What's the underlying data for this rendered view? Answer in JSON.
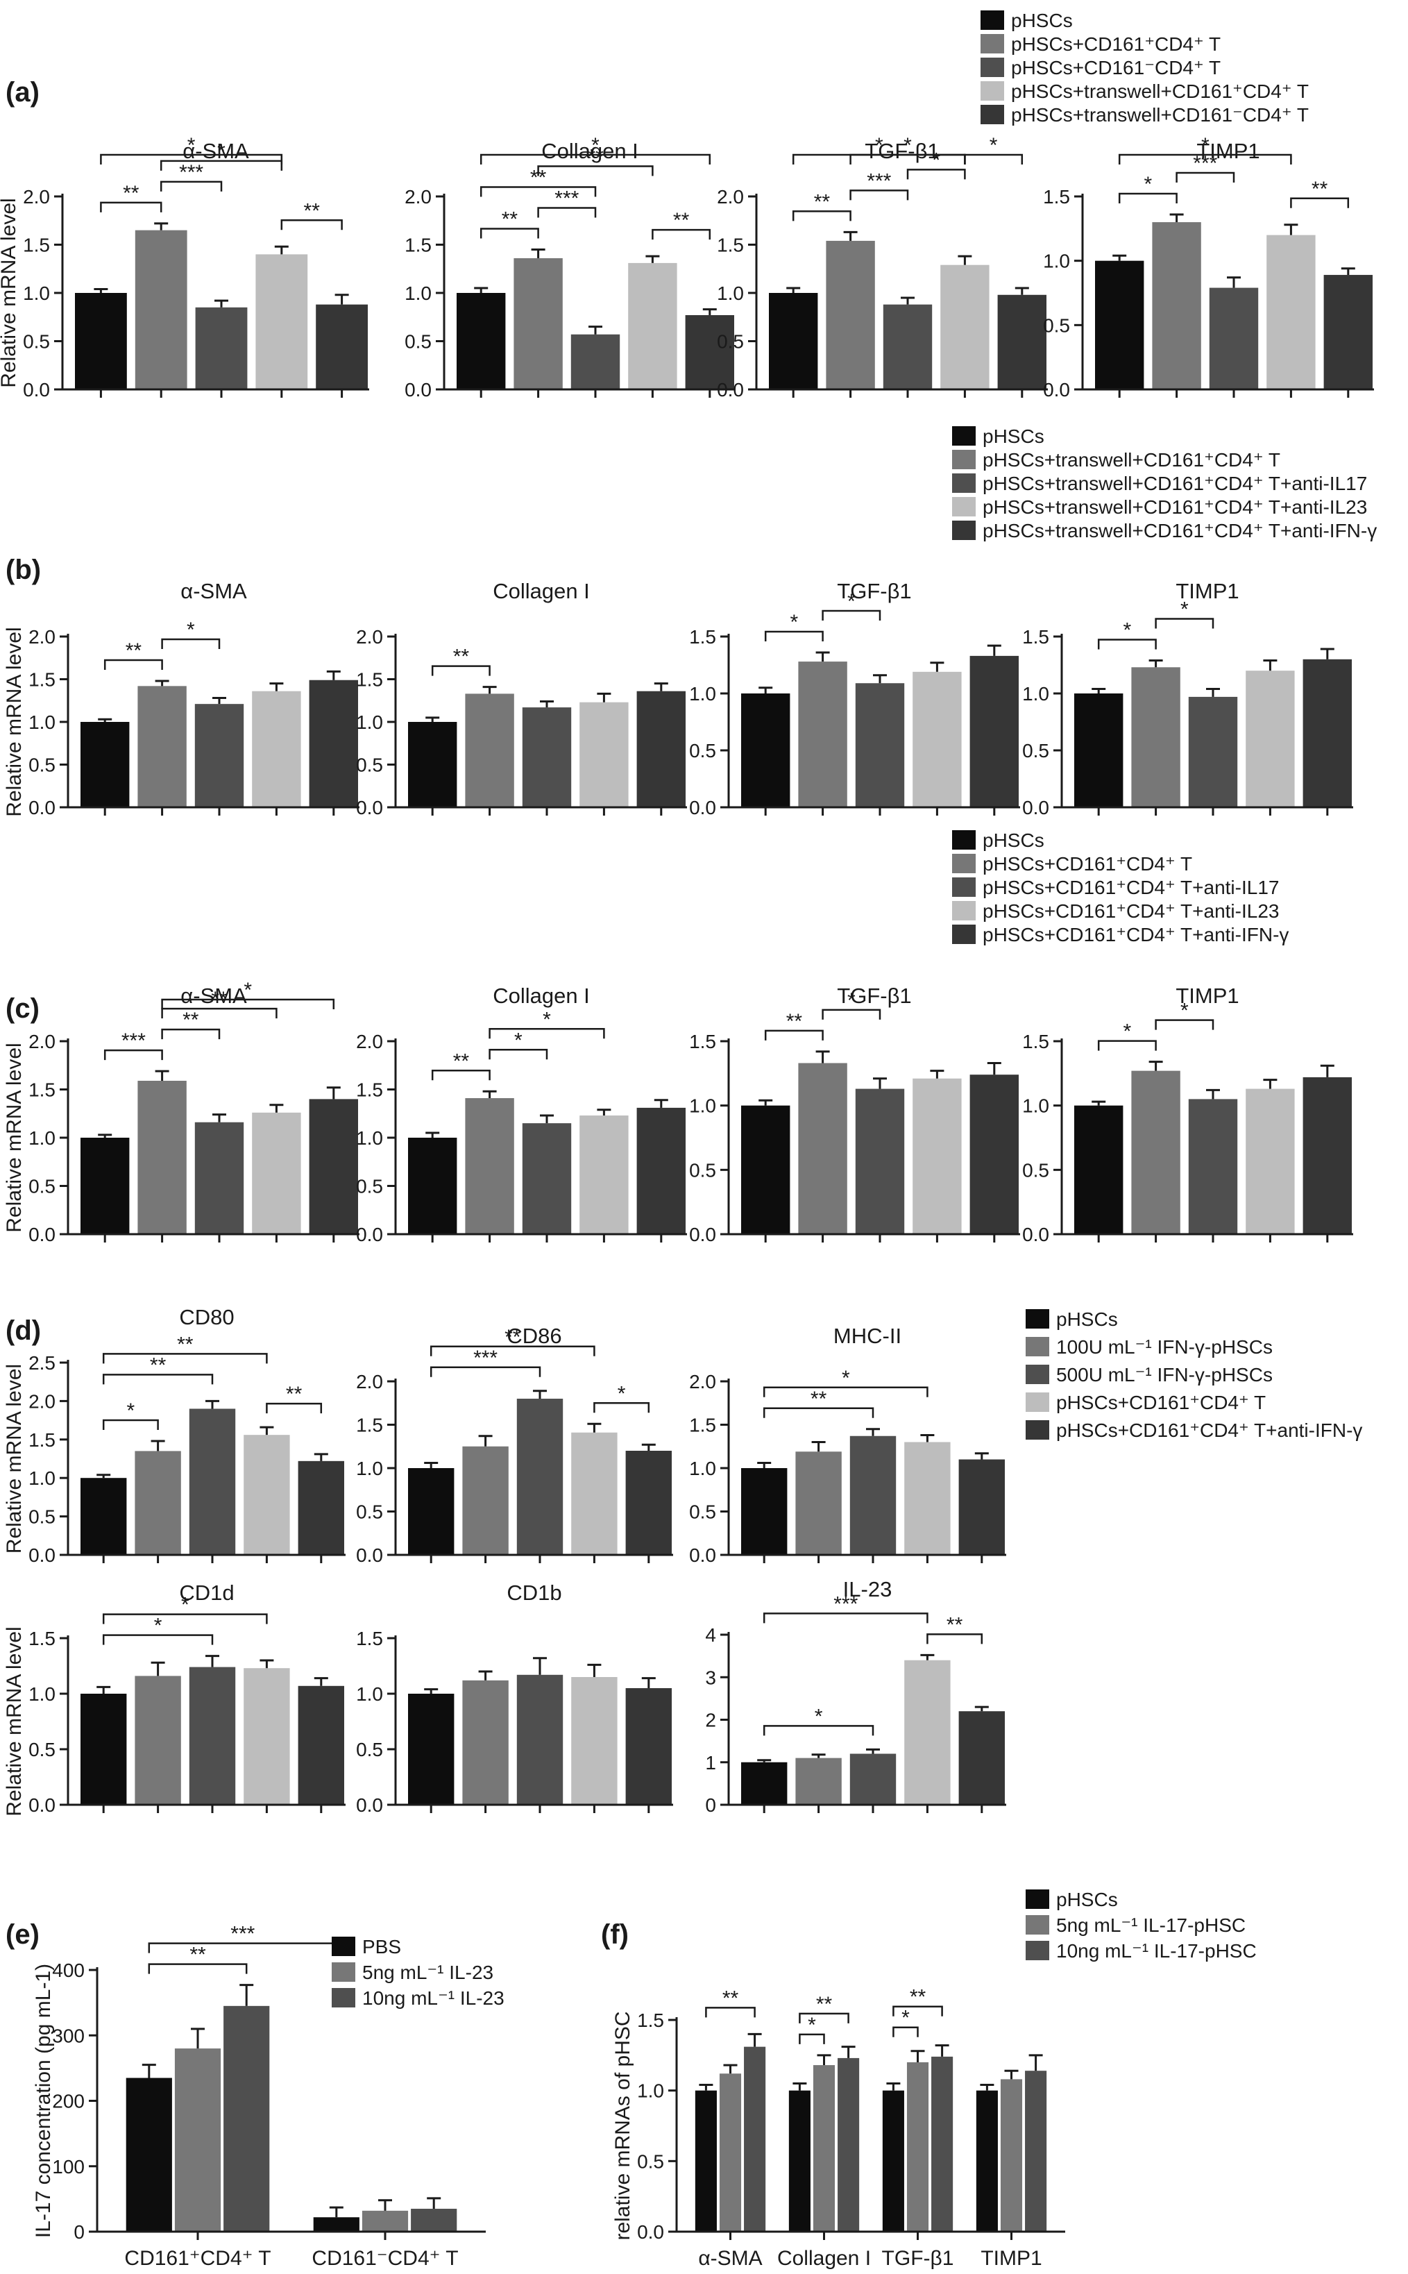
{
  "colors": {
    "c1": "#0d0d0d",
    "c2": "#777777",
    "c3": "#4f4f4f",
    "c4": "#bdbdbd",
    "c5": "#363636"
  },
  "legends": {
    "a": [
      "pHSCs",
      "pHSCs+CD161⁺CD4⁺ T",
      "pHSCs+CD161⁻CD4⁺ T",
      "pHSCs+transwell+CD161⁺CD4⁺ T",
      "pHSCs+transwell+CD161⁻CD4⁺ T"
    ],
    "b": [
      "pHSCs",
      "pHSCs+transwell+CD161⁺CD4⁺ T",
      "pHSCs+transwell+CD161⁺CD4⁺ T+anti-IL17",
      "pHSCs+transwell+CD161⁺CD4⁺ T+anti-IL23",
      "pHSCs+transwell+CD161⁺CD4⁺ T+anti-IFN-γ"
    ],
    "c": [
      "pHSCs",
      "pHSCs+CD161⁺CD4⁺ T",
      "pHSCs+CD161⁺CD4⁺ T+anti-IL17",
      "pHSCs+CD161⁺CD4⁺ T+anti-IL23",
      "pHSCs+CD161⁺CD4⁺ T+anti-IFN-γ"
    ],
    "d": [
      "pHSCs",
      "100U mL⁻¹ IFN-γ-pHSCs",
      "500U mL⁻¹ IFN-γ-pHSCs",
      "pHSCs+CD161⁺CD4⁺ T",
      "pHSCs+CD161⁺CD4⁺ T+anti-IFN-γ"
    ],
    "e": [
      "PBS",
      "5ng mL⁻¹ IL-23",
      "10ng mL⁻¹ IL-23"
    ],
    "f": [
      "pHSCs",
      "5ng mL⁻¹ IL-17-pHSC",
      "10ng mL⁻¹ IL-17-pHSC"
    ]
  },
  "chart_data": [
    {
      "panel": "a",
      "type": "bar",
      "title": "α-SMA",
      "ylabel": "Relative mRNA level",
      "ylim": [
        0,
        2.0
      ],
      "yticks": [
        "0.0",
        "0.5",
        "1.0",
        "1.5",
        "2.0"
      ],
      "legend": "a",
      "values": [
        1.0,
        1.65,
        0.85,
        1.4,
        0.88
      ],
      "errors": [
        0.04,
        0.07,
        0.07,
        0.08,
        0.1
      ],
      "sig": [
        {
          "from": 1,
          "to": 2,
          "label": "**"
        },
        {
          "from": 2,
          "to": 3,
          "label": "***"
        },
        {
          "from": 2,
          "to": 4,
          "label": "*"
        },
        {
          "from": 4,
          "to": 5,
          "label": "**"
        },
        {
          "from": 1,
          "to": 4,
          "label": "*"
        }
      ]
    },
    {
      "panel": "a",
      "type": "bar",
      "title": "Collagen I",
      "ylabel": "",
      "ylim": [
        0,
        2.0
      ],
      "yticks": [
        "0.0",
        "0.5",
        "1.0",
        "1.5",
        "2.0"
      ],
      "legend": "a",
      "values": [
        1.0,
        1.36,
        0.57,
        1.31,
        0.77
      ],
      "errors": [
        0.05,
        0.09,
        0.08,
        0.07,
        0.06
      ],
      "sig": [
        {
          "from": 1,
          "to": 2,
          "label": "**"
        },
        {
          "from": 2,
          "to": 3,
          "label": "***"
        },
        {
          "from": 1,
          "to": 3,
          "label": "**"
        },
        {
          "from": 4,
          "to": 5,
          "label": "**"
        },
        {
          "from": 2,
          "to": 4,
          "label": "**"
        },
        {
          "from": 1,
          "to": 5,
          "label": "*"
        }
      ]
    },
    {
      "panel": "a",
      "type": "bar",
      "title": "TGF-β1",
      "ylabel": "",
      "ylim": [
        0,
        2.0
      ],
      "yticks": [
        "0.0",
        "0.5",
        "1.0",
        "1.5",
        "2.0"
      ],
      "legend": "a",
      "values": [
        1.0,
        1.54,
        0.88,
        1.29,
        0.98
      ],
      "errors": [
        0.05,
        0.09,
        0.07,
        0.09,
        0.07
      ],
      "sig": [
        {
          "from": 1,
          "to": 2,
          "label": "**"
        },
        {
          "from": 2,
          "to": 3,
          "label": "***"
        },
        {
          "from": 3,
          "to": 4,
          "label": "*"
        },
        {
          "from": 4,
          "to": 5,
          "label": "*"
        },
        {
          "from": 2,
          "to": 4,
          "label": "*"
        },
        {
          "from": 1,
          "to": 4,
          "label": "*"
        }
      ]
    },
    {
      "panel": "a",
      "type": "bar",
      "title": "TIMP1",
      "ylabel": "",
      "ylim": [
        0,
        1.5
      ],
      "yticks": [
        "0.0",
        "0.5",
        "1.0",
        "1.5"
      ],
      "legend": "a",
      "values": [
        1.0,
        1.3,
        0.79,
        1.2,
        0.89
      ],
      "errors": [
        0.04,
        0.06,
        0.08,
        0.08,
        0.05
      ],
      "sig": [
        {
          "from": 1,
          "to": 2,
          "label": "*"
        },
        {
          "from": 2,
          "to": 3,
          "label": "***"
        },
        {
          "from": 4,
          "to": 5,
          "label": "**"
        },
        {
          "from": 1,
          "to": 4,
          "label": "*"
        }
      ]
    },
    {
      "panel": "b",
      "type": "bar",
      "title": "α-SMA",
      "ylabel": "Relative mRNA level",
      "ylim": [
        0,
        2.0
      ],
      "yticks": [
        "0.0",
        "0.5",
        "1.0",
        "1.5",
        "2.0"
      ],
      "legend": "b",
      "values": [
        1.0,
        1.42,
        1.21,
        1.36,
        1.49
      ],
      "errors": [
        0.03,
        0.06,
        0.07,
        0.09,
        0.1
      ],
      "sig": [
        {
          "from": 1,
          "to": 2,
          "label": "**"
        },
        {
          "from": 2,
          "to": 3,
          "label": "*"
        }
      ]
    },
    {
      "panel": "b",
      "type": "bar",
      "title": "Collagen I",
      "ylabel": "",
      "ylim": [
        0,
        2.0
      ],
      "yticks": [
        "0.0",
        "0.5",
        "1.0",
        "1.5",
        "2.0"
      ],
      "legend": "b",
      "values": [
        1.0,
        1.33,
        1.17,
        1.23,
        1.36
      ],
      "errors": [
        0.05,
        0.08,
        0.07,
        0.1,
        0.09
      ],
      "sig": [
        {
          "from": 1,
          "to": 2,
          "label": "**"
        }
      ]
    },
    {
      "panel": "b",
      "type": "bar",
      "title": "TGF-β1",
      "ylabel": "",
      "ylim": [
        0,
        1.5
      ],
      "yticks": [
        "0.0",
        "0.5",
        "1.0",
        "1.5"
      ],
      "legend": "b",
      "values": [
        1.0,
        1.28,
        1.09,
        1.19,
        1.33
      ],
      "errors": [
        0.05,
        0.08,
        0.07,
        0.08,
        0.09
      ],
      "sig": [
        {
          "from": 1,
          "to": 2,
          "label": "*"
        },
        {
          "from": 2,
          "to": 3,
          "label": "*"
        }
      ]
    },
    {
      "panel": "b",
      "type": "bar",
      "title": "TIMP1",
      "ylabel": "",
      "ylim": [
        0,
        1.5
      ],
      "yticks": [
        "0.0",
        "0.5",
        "1.0",
        "1.5"
      ],
      "legend": "b",
      "values": [
        1.0,
        1.23,
        0.97,
        1.2,
        1.3
      ],
      "errors": [
        0.04,
        0.06,
        0.07,
        0.09,
        0.09
      ],
      "sig": [
        {
          "from": 1,
          "to": 2,
          "label": "*"
        },
        {
          "from": 2,
          "to": 3,
          "label": "*"
        }
      ]
    },
    {
      "panel": "c",
      "type": "bar",
      "title": "α-SMA",
      "ylabel": "Relative mRNA level",
      "ylim": [
        0,
        2.0
      ],
      "yticks": [
        "0.0",
        "0.5",
        "1.0",
        "1.5",
        "2.0"
      ],
      "legend": "c",
      "values": [
        1.0,
        1.59,
        1.16,
        1.26,
        1.4
      ],
      "errors": [
        0.03,
        0.1,
        0.08,
        0.08,
        0.12
      ],
      "sig": [
        {
          "from": 1,
          "to": 2,
          "label": "***"
        },
        {
          "from": 2,
          "to": 3,
          "label": "**"
        },
        {
          "from": 2,
          "to": 4,
          "label": "**"
        },
        {
          "from": 2,
          "to": 5,
          "label": "*"
        }
      ]
    },
    {
      "panel": "c",
      "type": "bar",
      "title": "Collagen I",
      "ylabel": "",
      "ylim": [
        0,
        2.0
      ],
      "yticks": [
        "0.0",
        "0.5",
        "1.0",
        "1.5",
        "2.0"
      ],
      "legend": "c",
      "values": [
        1.0,
        1.41,
        1.15,
        1.23,
        1.31
      ],
      "errors": [
        0.05,
        0.07,
        0.08,
        0.06,
        0.08
      ],
      "sig": [
        {
          "from": 1,
          "to": 2,
          "label": "**"
        },
        {
          "from": 2,
          "to": 3,
          "label": "*"
        },
        {
          "from": 2,
          "to": 4,
          "label": "*"
        }
      ]
    },
    {
      "panel": "c",
      "type": "bar",
      "title": "TGF-β1",
      "ylabel": "",
      "ylim": [
        0,
        1.5
      ],
      "yticks": [
        "0.0",
        "0.5",
        "1.0",
        "1.5"
      ],
      "legend": "c",
      "values": [
        1.0,
        1.33,
        1.13,
        1.21,
        1.24
      ],
      "errors": [
        0.04,
        0.09,
        0.08,
        0.06,
        0.09
      ],
      "sig": [
        {
          "from": 1,
          "to": 2,
          "label": "**"
        },
        {
          "from": 2,
          "to": 3,
          "label": "*"
        }
      ]
    },
    {
      "panel": "c",
      "type": "bar",
      "title": "TIMP1",
      "ylabel": "",
      "ylim": [
        0,
        1.5
      ],
      "yticks": [
        "0.0",
        "0.5",
        "1.0",
        "1.5"
      ],
      "legend": "c",
      "values": [
        1.0,
        1.27,
        1.05,
        1.13,
        1.22
      ],
      "errors": [
        0.03,
        0.07,
        0.07,
        0.07,
        0.09
      ],
      "sig": [
        {
          "from": 1,
          "to": 2,
          "label": "*"
        },
        {
          "from": 2,
          "to": 3,
          "label": "*"
        }
      ]
    },
    {
      "panel": "d",
      "type": "bar",
      "title": "CD80",
      "ylabel": "Relative  mRNA level",
      "ylim": [
        0,
        2.5
      ],
      "yticks": [
        "0.0",
        "0.5",
        "1.0",
        "1.5",
        "2.0",
        "2.5"
      ],
      "legend": "d",
      "values": [
        1.0,
        1.35,
        1.9,
        1.56,
        1.22
      ],
      "errors": [
        0.04,
        0.13,
        0.1,
        0.1,
        0.09
      ],
      "sig": [
        {
          "from": 1,
          "to": 2,
          "label": "*"
        },
        {
          "from": 1,
          "to": 3,
          "label": "**"
        },
        {
          "from": 4,
          "to": 5,
          "label": "**"
        },
        {
          "from": 1,
          "to": 4,
          "label": "**"
        }
      ]
    },
    {
      "panel": "d",
      "type": "bar",
      "title": "CD86",
      "ylabel": "",
      "ylim": [
        0,
        2.0
      ],
      "yticks": [
        "0.0",
        "0.5",
        "1.0",
        "1.5",
        "2.0"
      ],
      "legend": "d",
      "values": [
        1.0,
        1.25,
        1.8,
        1.41,
        1.2
      ],
      "errors": [
        0.06,
        0.12,
        0.09,
        0.1,
        0.07
      ],
      "sig": [
        {
          "from": 1,
          "to": 3,
          "label": "***"
        },
        {
          "from": 4,
          "to": 5,
          "label": "*"
        },
        {
          "from": 1,
          "to": 4,
          "label": "**"
        }
      ]
    },
    {
      "panel": "d",
      "type": "bar",
      "title": "MHC-II",
      "ylabel": "",
      "ylim": [
        0,
        2.0
      ],
      "yticks": [
        "0.0",
        "0.5",
        "1.0",
        "1.5",
        "2.0"
      ],
      "legend": "d",
      "values": [
        1.0,
        1.19,
        1.37,
        1.3,
        1.1
      ],
      "errors": [
        0.06,
        0.11,
        0.08,
        0.08,
        0.07
      ],
      "sig": [
        {
          "from": 1,
          "to": 3,
          "label": "**"
        },
        {
          "from": 1,
          "to": 4,
          "label": "*"
        }
      ]
    },
    {
      "panel": "d",
      "type": "bar",
      "title": "CD1d",
      "ylabel": "Relative  mRNA level",
      "ylim": [
        0,
        1.5
      ],
      "yticks": [
        "0.0",
        "0.5",
        "1.0",
        "1.5"
      ],
      "legend": "d",
      "values": [
        1.0,
        1.16,
        1.24,
        1.23,
        1.07
      ],
      "errors": [
        0.06,
        0.12,
        0.1,
        0.07,
        0.07
      ],
      "sig": [
        {
          "from": 1,
          "to": 3,
          "label": "*"
        },
        {
          "from": 1,
          "to": 4,
          "label": "*"
        }
      ]
    },
    {
      "panel": "d",
      "type": "bar",
      "title": "CD1b",
      "ylabel": "",
      "ylim": [
        0,
        1.5
      ],
      "yticks": [
        "0.0",
        "0.5",
        "1.0",
        "1.5"
      ],
      "legend": "d",
      "values": [
        1.0,
        1.12,
        1.17,
        1.15,
        1.05
      ],
      "errors": [
        0.04,
        0.08,
        0.15,
        0.11,
        0.09
      ],
      "sig": []
    },
    {
      "panel": "d",
      "type": "bar",
      "title": "IL-23",
      "ylabel": "",
      "ylim": [
        0,
        4
      ],
      "yticks": [
        "0",
        "1",
        "2",
        "3",
        "4"
      ],
      "legend": "d",
      "values": [
        1.0,
        1.1,
        1.2,
        3.4,
        2.2
      ],
      "errors": [
        0.05,
        0.08,
        0.1,
        0.12,
        0.1
      ],
      "sig": [
        {
          "from": 1,
          "to": 3,
          "label": "*"
        },
        {
          "from": 4,
          "to": 5,
          "label": "**"
        },
        {
          "from": 1,
          "to": 4,
          "label": "***"
        }
      ]
    },
    {
      "panel": "e",
      "type": "bar",
      "title": "",
      "ylabel": "IL-17 concentration (pg mL-1)",
      "ylim": [
        0,
        400
      ],
      "yticks": [
        "0",
        "100",
        "200",
        "300",
        "400"
      ],
      "legend": "e",
      "categories": [
        "CD161⁺CD4⁺ T",
        "CD161⁻CD4⁺ T"
      ],
      "series": [
        {
          "name": "PBS",
          "values": [
            235,
            22
          ],
          "errors": [
            20,
            15
          ]
        },
        {
          "name": "5ng mL⁻¹ IL-23",
          "values": [
            280,
            32
          ],
          "errors": [
            30,
            16
          ]
        },
        {
          "name": "10ng mL⁻¹ IL-23",
          "values": [
            345,
            35
          ],
          "errors": [
            32,
            16
          ]
        }
      ],
      "sig": [
        {
          "from": 1,
          "to": 3,
          "label": "**"
        },
        {
          "from": 1,
          "to": 4,
          "label": "***"
        }
      ]
    },
    {
      "panel": "f",
      "type": "bar",
      "title": "",
      "ylabel": "relative mRNAs of pHSC",
      "ylim": [
        0,
        1.5
      ],
      "yticks": [
        "0.0",
        "0.5",
        "1.0",
        "1.5"
      ],
      "legend": "f",
      "categories": [
        "α-SMA",
        "Collagen I",
        "TGF-β1",
        "TIMP1"
      ],
      "series": [
        {
          "name": "pHSCs",
          "values": [
            1.0,
            1.0,
            1.0,
            1.0
          ],
          "errors": [
            0.04,
            0.05,
            0.05,
            0.04
          ]
        },
        {
          "name": "5ng mL⁻¹ IL-17-pHSC",
          "values": [
            1.12,
            1.18,
            1.2,
            1.08
          ],
          "errors": [
            0.06,
            0.07,
            0.08,
            0.06
          ]
        },
        {
          "name": "10ng mL⁻¹ IL-17-pHSC",
          "values": [
            1.31,
            1.23,
            1.24,
            1.14
          ],
          "errors": [
            0.09,
            0.08,
            0.08,
            0.11
          ]
        }
      ],
      "sig": [
        {
          "from": 1,
          "to": 3,
          "label": "**"
        },
        {
          "from": 4,
          "to": 5,
          "label": "*"
        },
        {
          "from": 4,
          "to": 6,
          "label": "**"
        },
        {
          "from": 7,
          "to": 8,
          "label": "*"
        },
        {
          "from": 7,
          "to": 9,
          "label": "**"
        }
      ]
    }
  ],
  "panel_labels": {
    "a": "(a)",
    "b": "(b)",
    "c": "(c)",
    "d": "(d)",
    "e": "(e)",
    "f": "(f)"
  }
}
